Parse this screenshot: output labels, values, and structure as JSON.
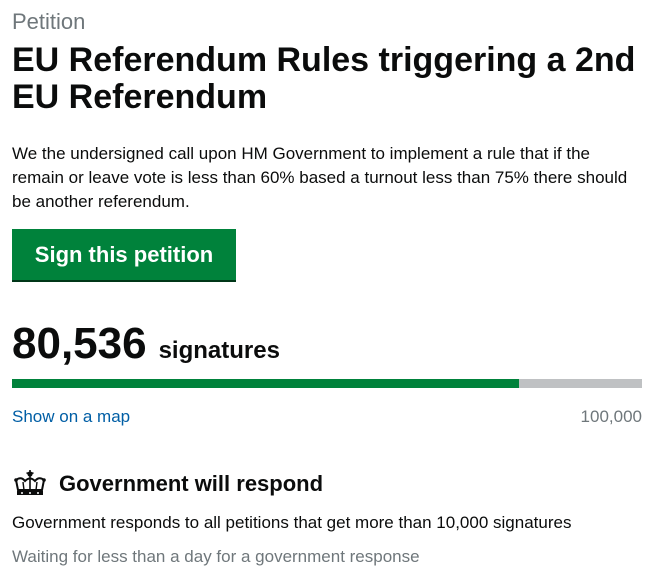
{
  "petition": {
    "kicker": "Petition",
    "title": "EU Referendum Rules triggering a 2nd EU Referendum",
    "description": "We the undersigned call upon HM Government to implement a rule that if the remain or leave vote is less than 60% based a turnout less than 75% there should be another referendum."
  },
  "actions": {
    "sign_label": "Sign this petition",
    "map_link": "Show on a map"
  },
  "signatures": {
    "count": "80,536",
    "label": "signatures",
    "target": "100,000",
    "progress_fraction": 0.80536
  },
  "colors": {
    "accent_green": "#00823b",
    "link_blue": "#005ea5",
    "muted_grey": "#6f777b",
    "track_grey": "#bfc1c3"
  },
  "government": {
    "icon": "crown-icon",
    "heading": "Government will respond",
    "text": "Government responds to all petitions that get more than 10,000 signatures",
    "waiting": "Waiting for less than a day for a government response"
  }
}
